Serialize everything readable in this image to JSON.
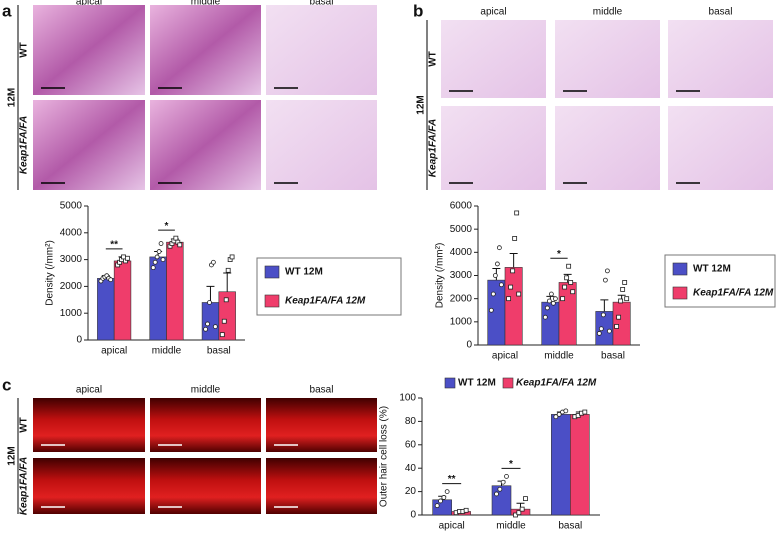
{
  "panels": [
    {
      "letter": "a",
      "columns": [
        "apical",
        "middle",
        "basal"
      ],
      "group": "12M",
      "rows": [
        "WT",
        "Keap1FA/FA"
      ]
    },
    {
      "letter": "b",
      "columns": [
        "apical",
        "middle",
        "basal"
      ],
      "group": "12M",
      "rows": [
        "WT",
        "Keap1FA/FA"
      ]
    },
    {
      "letter": "c",
      "columns": [
        "apical",
        "middle",
        "basal"
      ],
      "group": "12M",
      "rows": [
        "WT",
        "Keap1FA/FA"
      ]
    }
  ],
  "chart_data": [
    {
      "type": "bar",
      "y_label": "Density (/mm²)",
      "categories": [
        "apical",
        "middle",
        "basal"
      ],
      "ylim": [
        0,
        5000
      ],
      "yticks": [
        0,
        1000,
        2000,
        3000,
        4000,
        5000
      ],
      "legend": "right",
      "annotations": [
        "**",
        "*",
        null
      ],
      "series": [
        {
          "name": "WT 12M",
          "color": "#4b4fc6",
          "values": [
            2300,
            3100,
            1400
          ],
          "errors": [
            100,
            200,
            600
          ],
          "points": [
            [
              2200,
              2300,
              2350,
              2400,
              2300,
              2250
            ],
            [
              2700,
              2900,
              3100,
              3300,
              3600,
              3000
            ],
            [
              400,
              600,
              1400,
              2800,
              2900,
              500
            ]
          ]
        },
        {
          "name": "Keap1FA/FA 12M",
          "color": "#ef3d6b",
          "values": [
            2950,
            3650,
            1800
          ],
          "errors": [
            150,
            120,
            700
          ],
          "points": [
            [
              2800,
              2900,
              3000,
              3100,
              2950,
              3050
            ],
            [
              3500,
              3600,
              3700,
              3800,
              3650,
              3550
            ],
            [
              200,
              700,
              1500,
              2600,
              3000,
              3100
            ]
          ]
        }
      ]
    },
    {
      "type": "bar",
      "y_label": "Density (/mm²)",
      "categories": [
        "apical",
        "middle",
        "basal"
      ],
      "ylim": [
        0,
        6000
      ],
      "yticks": [
        0,
        1000,
        2000,
        3000,
        4000,
        5000,
        6000
      ],
      "legend": "right",
      "annotations": [
        null,
        "*",
        null
      ],
      "series": [
        {
          "name": "WT 12M",
          "color": "#4b4fc6",
          "values": [
            2800,
            1850,
            1450
          ],
          "errors": [
            500,
            250,
            500
          ],
          "points": [
            [
              1500,
              2200,
              3000,
              3500,
              4200,
              2600
            ],
            [
              1200,
              1600,
              1900,
              2200,
              1800,
              2000
            ],
            [
              500,
              700,
              1300,
              2800,
              3200,
              600
            ]
          ]
        },
        {
          "name": "Keap1FA/FA 12M",
          "color": "#ef3d6b",
          "values": [
            3350,
            2700,
            1850
          ],
          "errors": [
            600,
            350,
            300
          ],
          "points": [
            [
              2000,
              2500,
              3200,
              4600,
              5700,
              2200
            ],
            [
              2000,
              2500,
              2900,
              3400,
              2700,
              2300
            ],
            [
              800,
              1200,
              1900,
              2400,
              2700,
              2000
            ]
          ]
        }
      ]
    },
    {
      "type": "bar",
      "y_label": "Outer hair cell loss (%)",
      "categories": [
        "apical",
        "middle",
        "basal"
      ],
      "ylim": [
        0,
        100
      ],
      "yticks": [
        0,
        20,
        40,
        60,
        80,
        100
      ],
      "legend": "top",
      "annotations": [
        "**",
        "*",
        null
      ],
      "series": [
        {
          "name": "WT 12M",
          "color": "#4b4fc6",
          "values": [
            13,
            25,
            86
          ],
          "errors": [
            3,
            4,
            2
          ],
          "points": [
            [
              8,
              12,
              15,
              20
            ],
            [
              18,
              22,
              28,
              33
            ],
            [
              84,
              86,
              88,
              89
            ]
          ]
        },
        {
          "name": "Keap1FA/FA 12M",
          "color": "#ef3d6b",
          "values": [
            3,
            5,
            86
          ],
          "errors": [
            1,
            5,
            2
          ],
          "points": [
            [
              2,
              3,
              3,
              4
            ],
            [
              0,
              2,
              5,
              14
            ],
            [
              84,
              85,
              87,
              88
            ]
          ]
        }
      ]
    }
  ]
}
